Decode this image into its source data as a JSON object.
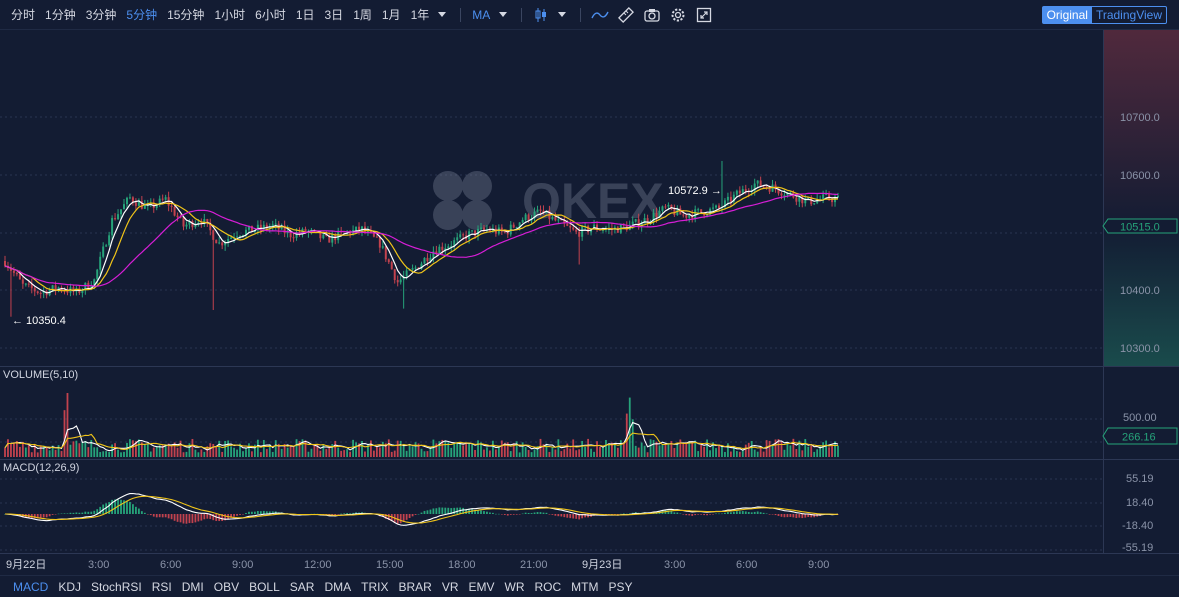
{
  "toolbar": {
    "intervals": [
      "分时",
      "1分钟",
      "3分钟",
      "5分钟",
      "15分钟",
      "1小时",
      "6小时",
      "1日",
      "3日",
      "1周",
      "1月",
      "1年"
    ],
    "active_interval": "5分钟",
    "indicator_label": "MA",
    "view_original": "Original",
    "view_tradingview": "TradingView"
  },
  "watermark": "OKEX",
  "price_axis": [
    "10700.0",
    "10600.0",
    "10400.0",
    "10300.0"
  ],
  "current_price": "10515.0",
  "high_marker": "10572.9 →",
  "low_marker": "← 10350.4",
  "volume": {
    "title": "VOLUME(5,10)",
    "axis": "500.00",
    "current": "266.16"
  },
  "macd": {
    "title": "MACD(12,26,9)",
    "axis": [
      "55.19",
      "18.40",
      "-18.40",
      "-55.19"
    ]
  },
  "time_axis": [
    "9月22日",
    "3:00",
    "6:00",
    "9:00",
    "12:00",
    "15:00",
    "18:00",
    "21:00",
    "9月23日",
    "3:00",
    "6:00",
    "9:00"
  ],
  "indicators": [
    "MACD",
    "KDJ",
    "StochRSI",
    "RSI",
    "DMI",
    "OBV",
    "BOLL",
    "SAR",
    "DMA",
    "TRIX",
    "BRAR",
    "VR",
    "EMV",
    "WR",
    "ROC",
    "MTM",
    "PSY"
  ],
  "active_indicator": "MACD",
  "colors": {
    "up": "#26a37a",
    "down": "#c2424e",
    "accent": "#4c8fef",
    "ma5": "#ffffff",
    "ma10": "#f0c419",
    "ma30": "#d61ed6"
  },
  "chart_data": {
    "type": "candlestick",
    "x_range": [
      "9月22日 0:00",
      "9月23日 9:40"
    ],
    "ylim": [
      10280,
      10760
    ],
    "price_anchors": [
      [
        0,
        10430
      ],
      [
        6,
        10395
      ],
      [
        12,
        10385
      ],
      [
        18,
        10392
      ],
      [
        24,
        10385
      ],
      [
        30,
        10402
      ],
      [
        36,
        10488
      ],
      [
        42,
        10520
      ],
      [
        48,
        10505
      ],
      [
        54,
        10518
      ],
      [
        60,
        10480
      ],
      [
        66,
        10490
      ],
      [
        72,
        10455
      ],
      [
        78,
        10470
      ],
      [
        84,
        10475
      ],
      [
        90,
        10480
      ],
      [
        96,
        10468
      ],
      [
        102,
        10472
      ],
      [
        108,
        10460
      ],
      [
        114,
        10470
      ],
      [
        120,
        10475
      ],
      [
        126,
        10455
      ],
      [
        132,
        10400
      ],
      [
        138,
        10420
      ],
      [
        144,
        10445
      ],
      [
        150,
        10455
      ],
      [
        156,
        10468
      ],
      [
        162,
        10475
      ],
      [
        168,
        10470
      ],
      [
        174,
        10490
      ],
      [
        180,
        10500
      ],
      [
        186,
        10485
      ],
      [
        192,
        10470
      ],
      [
        198,
        10478
      ],
      [
        204,
        10475
      ],
      [
        210,
        10480
      ],
      [
        216,
        10490
      ],
      [
        222,
        10505
      ],
      [
        228,
        10495
      ],
      [
        234,
        10500
      ],
      [
        240,
        10505
      ],
      [
        246,
        10525
      ],
      [
        252,
        10540
      ],
      [
        258,
        10535
      ],
      [
        264,
        10525
      ],
      [
        270,
        10515
      ],
      [
        276,
        10520
      ],
      [
        280,
        10518
      ]
    ],
    "spikes": {
      "high": [
        241,
        10572.9
      ],
      "low": [
        2,
        10350.4
      ]
    },
    "volume_spikes": [
      [
        20,
        410
      ],
      [
        21,
        560
      ],
      [
        209,
        380
      ],
      [
        210,
        520
      ],
      [
        211,
        330
      ]
    ]
  }
}
